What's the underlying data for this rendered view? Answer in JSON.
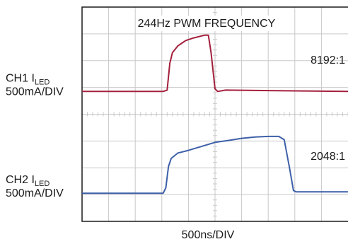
{
  "chart_data": {
    "type": "line",
    "title": "244Hz PWM FREQUENCY",
    "xlabel": "500ns/DIV",
    "grid": true,
    "x_divisions": 10,
    "y_divisions": 8,
    "x_range_div": [
      0,
      10
    ],
    "y_range_div": [
      0,
      8
    ],
    "series": [
      {
        "name": "CH1 I_LED",
        "label_main": "CH1 I",
        "label_sub": "LED",
        "scale": "500mA/DIV",
        "ratio": "8192:1",
        "color": "#a3203c",
        "points": [
          [
            0,
            4.85
          ],
          [
            3.05,
            4.85
          ],
          [
            3.2,
            4.9
          ],
          [
            3.3,
            5.9
          ],
          [
            3.4,
            6.3
          ],
          [
            3.6,
            6.55
          ],
          [
            3.9,
            6.75
          ],
          [
            4.2,
            6.85
          ],
          [
            4.6,
            6.95
          ],
          [
            4.75,
            6.95
          ],
          [
            4.85,
            6.3
          ],
          [
            5.0,
            4.95
          ],
          [
            5.1,
            4.85
          ],
          [
            5.4,
            4.9
          ],
          [
            10,
            4.85
          ]
        ]
      },
      {
        "name": "CH2 I_LED",
        "label_main": "CH2 I",
        "label_sub": "LED",
        "scale": "500mA/DIV",
        "ratio": "2048:1",
        "color": "#3d5fa8",
        "points": [
          [
            0,
            1.05
          ],
          [
            3.05,
            1.05
          ],
          [
            3.15,
            1.25
          ],
          [
            3.25,
            2.05
          ],
          [
            3.35,
            2.35
          ],
          [
            3.6,
            2.55
          ],
          [
            4.0,
            2.65
          ],
          [
            4.5,
            2.8
          ],
          [
            5.0,
            2.95
          ],
          [
            5.5,
            3.02
          ],
          [
            6.0,
            3.1
          ],
          [
            6.5,
            3.15
          ],
          [
            7.0,
            3.17
          ],
          [
            7.4,
            3.17
          ],
          [
            7.6,
            3.05
          ],
          [
            7.8,
            2.0
          ],
          [
            7.95,
            1.15
          ],
          [
            8.05,
            1.1
          ],
          [
            10,
            1.1
          ]
        ]
      }
    ]
  }
}
